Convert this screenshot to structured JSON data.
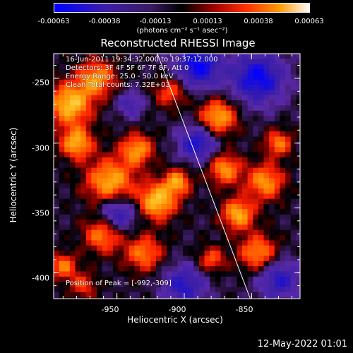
{
  "colorbar": {
    "ticks": [
      "-0.00063",
      "-0.00038",
      "-0.00013",
      "0.00013",
      "0.00038",
      "0.00063"
    ],
    "units": "(photons cm⁻² s⁻¹ asec⁻²)"
  },
  "annotations": {
    "time_range": "16-Jun-2011 19:34:32.000 to 19:37:12.000",
    "detectors": "Detectors: 3F 4F 5F 6F 7F 8F, Att 0",
    "energy": "Energy Range: 25.0 - 50.0 keV",
    "clean": "Clean    Total counts: 7.32E+03",
    "peak": "Position of Peak = [-992,-309]"
  },
  "footer": {
    "date": "12-May-2022 01:01"
  },
  "chart_data": {
    "type": "heatmap",
    "title": "Reconstructed RHESSI Image",
    "xlabel": "Heliocentric X (arcsec)",
    "ylabel": "Heliocentric Y (arcsec)",
    "xlim": [
      -997,
      -814
    ],
    "ylim": [
      -420,
      -231
    ],
    "x_ticks": [
      -950,
      -900,
      -850
    ],
    "y_ticks": [
      -250,
      -300,
      -350,
      -400
    ],
    "x_tick_labels": [
      "-950",
      "-900",
      "-850"
    ],
    "y_tick_labels": [
      "-250",
      "-300",
      "-350",
      "-400"
    ],
    "colorbar_range": [
      -0.00063,
      0.00063
    ],
    "limb_line": {
      "x": [
        -920,
        -851
      ],
      "y": [
        -231,
        -420
      ]
    },
    "peak": {
      "x": -992,
      "y": -309
    },
    "colormap": [
      "#0000ff",
      "#3a1ea8",
      "#5a2aa8",
      "#1a0a20",
      "#000000",
      "#7a0000",
      "#ff2000",
      "#ff8000",
      "#ffc020",
      "#ffffff"
    ],
    "background_color": "#000000"
  }
}
